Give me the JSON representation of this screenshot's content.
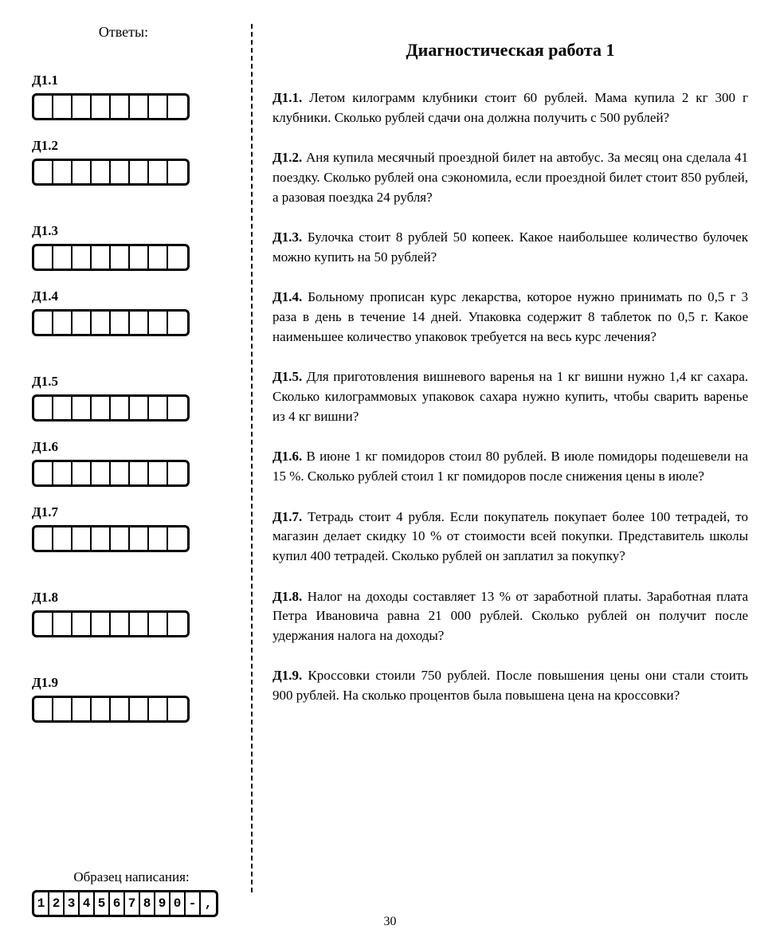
{
  "left": {
    "title": "Ответы:",
    "sample_label": "Образец написания:",
    "sample_chars": [
      "1",
      "2",
      "3",
      "4",
      "5",
      "6",
      "7",
      "8",
      "9",
      "0",
      "-",
      ","
    ]
  },
  "answers": [
    {
      "label": "Д1.1",
      "cells": 8
    },
    {
      "label": "Д1.2",
      "cells": 8
    },
    {
      "label": "Д1.3",
      "cells": 8
    },
    {
      "label": "Д1.4",
      "cells": 8
    },
    {
      "label": "Д1.5",
      "cells": 8
    },
    {
      "label": "Д1.6",
      "cells": 8
    },
    {
      "label": "Д1.7",
      "cells": 8
    },
    {
      "label": "Д1.8",
      "cells": 8
    },
    {
      "label": "Д1.9",
      "cells": 8
    }
  ],
  "spacing_after": [
    0,
    1,
    0,
    1,
    0,
    0,
    1,
    1,
    0
  ],
  "main_title": "Диагностическая работа 1",
  "problems": [
    {
      "label": "Д1.1.",
      "text": "Летом килограмм клубники стоит 60 рублей. Мама купила 2 кг 300 г клубники. Сколько рублей сдачи она должна получить с 500 рублей?"
    },
    {
      "label": "Д1.2.",
      "text": "Аня купила месячный проездной билет на автобус. За месяц она сделала 41 поездку. Сколько рублей она сэкономила, если проездной билет стоит 850 рублей, а разовая поездка 24 рубля?"
    },
    {
      "label": "Д1.3.",
      "text": "Булочка стоит 8 рублей 50 копеек. Какое наибольшее количество булочек можно купить на 50 рублей?"
    },
    {
      "label": "Д1.4.",
      "text": "Больному прописан курс лекарства, которое нужно принимать по 0,5 г 3 раза в день в течение 14 дней. Упаковка содержит 8 таблеток по 0,5 г. Какое наименьшее количество упаковок требуется на весь курс лечения?"
    },
    {
      "label": "Д1.5.",
      "text": "Для приготовления вишневого варенья на 1 кг вишни нужно 1,4 кг сахара. Сколько килограммовых упаковок сахара нужно купить, чтобы сварить варенье из 4 кг вишни?"
    },
    {
      "label": "Д1.6.",
      "text": "В июне 1 кг помидоров стоил 80 рублей. В июле помидоры подешевели на 15 %. Сколько рублей стоил 1 кг помидоров после снижения цены в июле?"
    },
    {
      "label": "Д1.7.",
      "text": "Тетрадь стоит 4 рубля. Если покупатель покупает более 100 тетрадей, то магазин делает скидку 10 % от стоимости всей покупки. Представитель школы купил 400 тетрадей. Сколько рублей он заплатил за покупку?"
    },
    {
      "label": "Д1.8.",
      "text": "Налог на доходы составляет 13 % от заработной платы. Заработная плата Петра Ивановича равна 21 000 рублей. Сколько рублей он получит после удержания налога на доходы?"
    },
    {
      "label": "Д1.9.",
      "text": "Кроссовки стоили 750 рублей. После повышения цены они стали стоить 900 рублей. На сколько процентов была повышена цена на кроссовки?"
    }
  ],
  "page_number": "30"
}
